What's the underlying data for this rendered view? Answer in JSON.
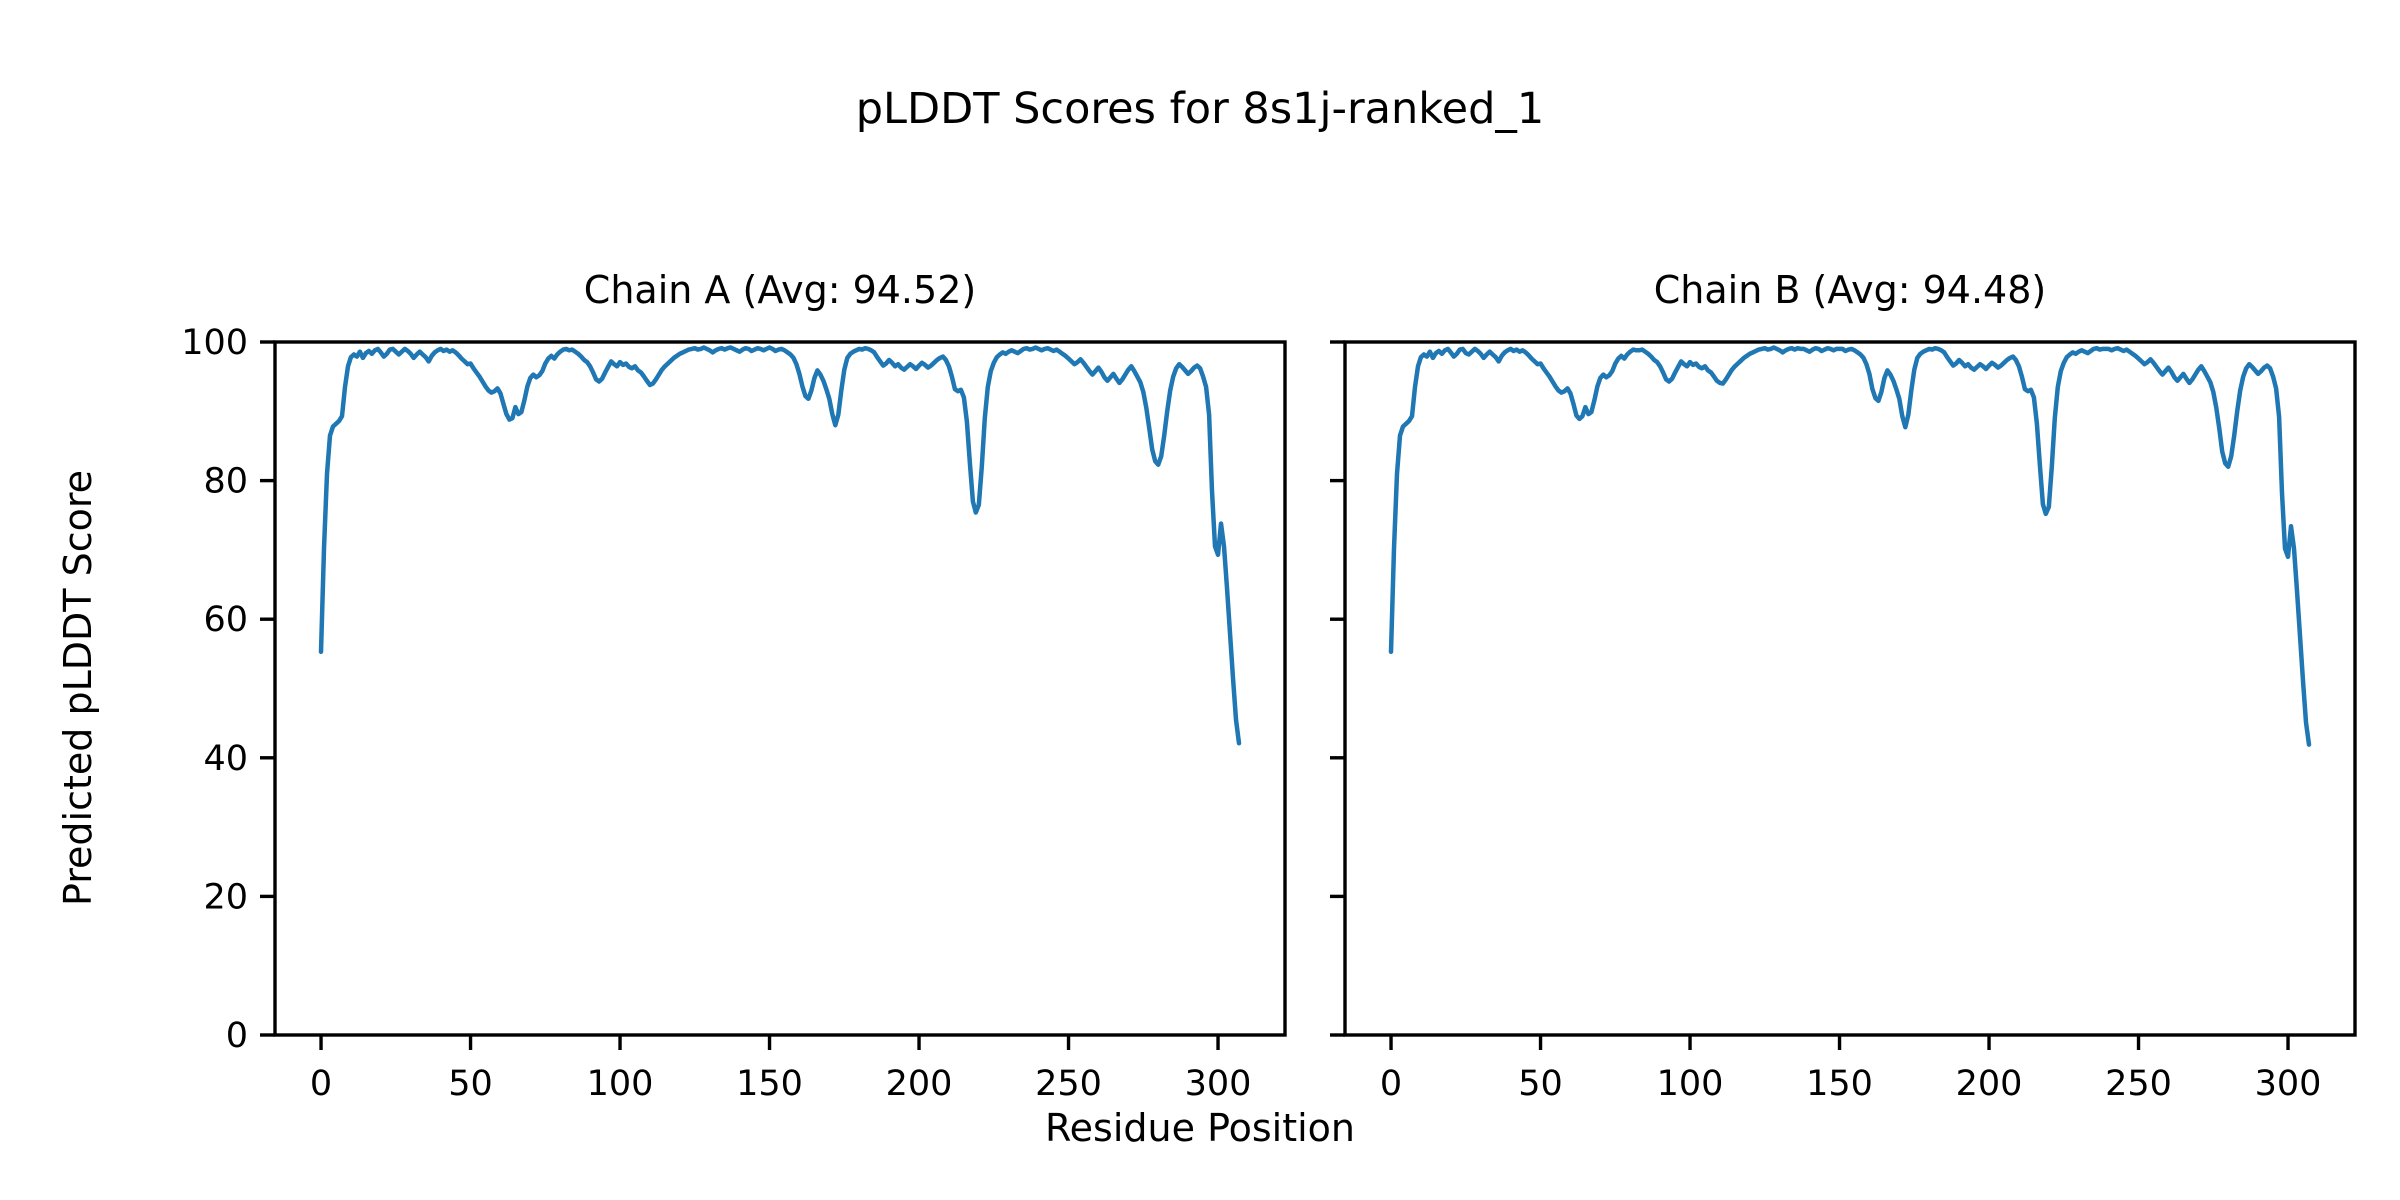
{
  "figure": {
    "title": "pLDDT Scores for 8s1j-ranked_1"
  },
  "chart_data": {
    "type": "line",
    "suptitle": "pLDDT Scores for 8s1j-ranked_1",
    "xlabel": "Residue Position",
    "ylabel": "Predicted pLDDT Score",
    "xlim": [
      -15.4,
      322.4
    ],
    "ylim": [
      0,
      100
    ],
    "xticks": [
      0,
      50,
      100,
      150,
      200,
      250,
      300
    ],
    "yticks": [
      0,
      20,
      40,
      60,
      80,
      100
    ],
    "grid": false,
    "legend": "none",
    "line_color": "#1f77b4",
    "subplots": [
      {
        "title": "Chain A (Avg: 94.52)",
        "chain": "A",
        "avg": 94.52,
        "x_start": 0,
        "show_y_tick_labels": true,
        "values": [
          55.3,
          70.2,
          81.0,
          86.5,
          87.8,
          88.2,
          88.6,
          89.3,
          93.5,
          96.5,
          97.8,
          98.2,
          97.9,
          98.6,
          97.7,
          98.4,
          98.7,
          98.3,
          98.8,
          99.0,
          98.5,
          97.9,
          98.3,
          98.9,
          99.0,
          98.6,
          98.2,
          98.6,
          99.0,
          98.7,
          98.3,
          97.7,
          98.2,
          98.6,
          98.2,
          97.8,
          97.2,
          98.0,
          98.5,
          98.8,
          99.0,
          98.7,
          98.9,
          98.6,
          98.8,
          98.5,
          98.1,
          97.6,
          97.2,
          96.8,
          96.9,
          96.2,
          95.6,
          95.0,
          94.3,
          93.6,
          93.0,
          92.7,
          92.9,
          93.3,
          92.6,
          91.1,
          89.6,
          88.8,
          89.0,
          90.6,
          89.6,
          89.9,
          91.6,
          93.6,
          94.8,
          95.3,
          94.9,
          95.2,
          95.8,
          96.9,
          97.6,
          98.0,
          97.6,
          98.2,
          98.6,
          98.9,
          99.0,
          98.8,
          98.9,
          98.6,
          98.3,
          97.9,
          97.4,
          97.1,
          96.5,
          95.6,
          94.6,
          94.3,
          94.7,
          95.6,
          96.4,
          97.2,
          96.8,
          96.5,
          97.1,
          96.7,
          96.9,
          96.4,
          96.2,
          96.5,
          95.9,
          95.6,
          95.0,
          94.4,
          93.8,
          94.0,
          94.6,
          95.3,
          96.0,
          96.5,
          96.9,
          97.3,
          97.7,
          98.0,
          98.3,
          98.5,
          98.7,
          98.9,
          99.0,
          99.1,
          98.9,
          99.0,
          99.2,
          99.0,
          98.8,
          98.5,
          98.8,
          99.0,
          99.1,
          98.9,
          99.1,
          99.2,
          99.0,
          98.8,
          98.6,
          98.9,
          99.1,
          99.0,
          98.7,
          98.9,
          99.1,
          99.0,
          98.8,
          99.0,
          99.2,
          99.0,
          98.7,
          98.9,
          99.0,
          98.8,
          98.5,
          98.2,
          97.7,
          96.8,
          95.4,
          93.6,
          92.2,
          91.8,
          93.0,
          94.8,
          95.9,
          95.3,
          94.4,
          93.2,
          91.8,
          89.6,
          88.0,
          89.5,
          93.0,
          96.0,
          97.7,
          98.3,
          98.6,
          98.8,
          99.0,
          98.9,
          99.1,
          99.0,
          98.8,
          98.5,
          97.8,
          97.2,
          96.6,
          96.9,
          97.4,
          97.0,
          96.5,
          96.8,
          96.3,
          96.0,
          96.4,
          96.8,
          96.5,
          96.1,
          96.6,
          97.0,
          96.7,
          96.3,
          96.6,
          97.0,
          97.4,
          97.7,
          97.9,
          97.4,
          96.5,
          95.0,
          93.2,
          92.9,
          93.1,
          92.0,
          88.5,
          82.5,
          77.0,
          75.4,
          76.5,
          82.0,
          89.0,
          93.5,
          95.8,
          97.0,
          97.8,
          98.2,
          98.5,
          98.3,
          98.6,
          98.8,
          98.6,
          98.4,
          98.7,
          99.0,
          99.1,
          98.9,
          99.0,
          99.2,
          99.0,
          98.8,
          99.0,
          99.1,
          98.9,
          98.7,
          98.9,
          98.6,
          98.3,
          98.0,
          97.6,
          97.2,
          96.8,
          97.1,
          97.5,
          97.0,
          96.4,
          95.8,
          95.3,
          95.8,
          96.3,
          95.7,
          94.9,
          94.4,
          94.9,
          95.4,
          94.7,
          94.1,
          94.6,
          95.3,
          96.0,
          96.5,
          95.8,
          95.0,
          94.2,
          92.8,
          90.5,
          87.5,
          84.5,
          82.8,
          82.3,
          83.5,
          86.5,
          90.0,
          93.0,
          95.0,
          96.2,
          96.8,
          96.4,
          95.9,
          95.4,
          95.8,
          96.3,
          96.6,
          96.2,
          95.0,
          93.5,
          89.5,
          78.5,
          70.5,
          69.3,
          73.8,
          70.5,
          64.5,
          58.0,
          51.5,
          45.5,
          42.1
        ]
      },
      {
        "title": "Chain B (Avg: 94.48)",
        "chain": "B",
        "avg": 94.48,
        "x_start": 0,
        "show_y_tick_labels": false,
        "values": [
          55.3,
          70.2,
          81.0,
          86.5,
          87.8,
          88.2,
          88.6,
          89.3,
          93.5,
          96.5,
          97.8,
          98.2,
          97.9,
          98.6,
          97.7,
          98.4,
          98.7,
          98.3,
          98.8,
          99.0,
          98.5,
          97.9,
          98.3,
          98.9,
          99.0,
          98.4,
          98.2,
          98.6,
          99.0,
          98.7,
          98.3,
          97.7,
          98.2,
          98.6,
          98.2,
          97.8,
          97.2,
          98.0,
          98.5,
          98.8,
          99.0,
          98.7,
          98.9,
          98.6,
          98.8,
          98.5,
          98.1,
          97.6,
          97.2,
          96.8,
          96.9,
          96.2,
          95.6,
          95.0,
          94.3,
          93.6,
          93.0,
          92.7,
          92.9,
          93.3,
          92.6,
          91.1,
          89.4,
          88.9,
          89.3,
          90.6,
          89.6,
          89.9,
          91.6,
          93.6,
          94.8,
          95.3,
          94.9,
          95.2,
          95.8,
          96.9,
          97.6,
          98.0,
          97.6,
          98.2,
          98.6,
          98.9,
          98.8,
          98.8,
          98.9,
          98.6,
          98.3,
          97.9,
          97.4,
          97.1,
          96.5,
          95.6,
          94.6,
          94.3,
          94.7,
          95.6,
          96.4,
          97.2,
          96.8,
          96.5,
          97.1,
          96.7,
          96.9,
          96.4,
          96.2,
          96.5,
          95.9,
          95.6,
          95.0,
          94.4,
          94.1,
          94.0,
          94.6,
          95.3,
          96.0,
          96.5,
          96.9,
          97.3,
          97.7,
          98.0,
          98.3,
          98.5,
          98.7,
          98.9,
          99.0,
          99.1,
          98.9,
          99.0,
          99.2,
          99.0,
          98.8,
          98.5,
          98.8,
          99.0,
          99.1,
          98.9,
          99.1,
          99.0,
          99.0,
          98.8,
          98.6,
          98.9,
          99.1,
          99.0,
          98.7,
          98.9,
          99.1,
          99.0,
          98.8,
          99.0,
          99.0,
          99.0,
          98.7,
          98.9,
          99.0,
          98.8,
          98.5,
          98.2,
          97.7,
          96.8,
          95.4,
          93.2,
          91.9,
          91.5,
          92.8,
          94.8,
          95.9,
          95.3,
          94.4,
          93.2,
          91.8,
          89.3,
          87.7,
          89.5,
          93.0,
          96.0,
          97.7,
          98.3,
          98.6,
          98.8,
          99.0,
          98.9,
          99.1,
          99.0,
          98.8,
          98.5,
          97.8,
          97.2,
          96.6,
          96.9,
          97.4,
          97.0,
          96.5,
          96.8,
          96.3,
          96.0,
          96.4,
          96.8,
          96.5,
          96.1,
          96.6,
          97.0,
          96.7,
          96.3,
          96.6,
          97.0,
          97.4,
          97.7,
          97.9,
          97.4,
          96.5,
          95.0,
          93.2,
          92.9,
          93.1,
          92.0,
          88.2,
          82.2,
          76.6,
          75.2,
          76.2,
          82.0,
          89.0,
          93.5,
          95.8,
          97.0,
          97.8,
          98.2,
          98.5,
          98.3,
          98.6,
          98.8,
          98.6,
          98.4,
          98.7,
          99.0,
          99.1,
          98.9,
          99.0,
          99.0,
          99.0,
          98.8,
          99.0,
          99.1,
          98.9,
          98.7,
          98.9,
          98.6,
          98.3,
          98.0,
          97.6,
          97.2,
          96.8,
          97.1,
          97.5,
          97.0,
          96.4,
          95.8,
          95.3,
          95.8,
          96.3,
          95.7,
          94.9,
          94.4,
          94.9,
          95.4,
          94.7,
          94.1,
          94.6,
          95.3,
          96.0,
          96.5,
          95.8,
          95.0,
          94.2,
          92.8,
          90.5,
          87.5,
          84.2,
          82.5,
          82.0,
          83.5,
          86.5,
          90.0,
          93.0,
          95.0,
          96.2,
          96.8,
          96.4,
          95.9,
          95.4,
          95.8,
          96.3,
          96.6,
          96.2,
          95.0,
          93.3,
          89.2,
          78.2,
          70.2,
          69.0,
          73.4,
          70.2,
          64.1,
          57.6,
          51.1,
          45.1,
          41.9
        ]
      }
    ]
  }
}
